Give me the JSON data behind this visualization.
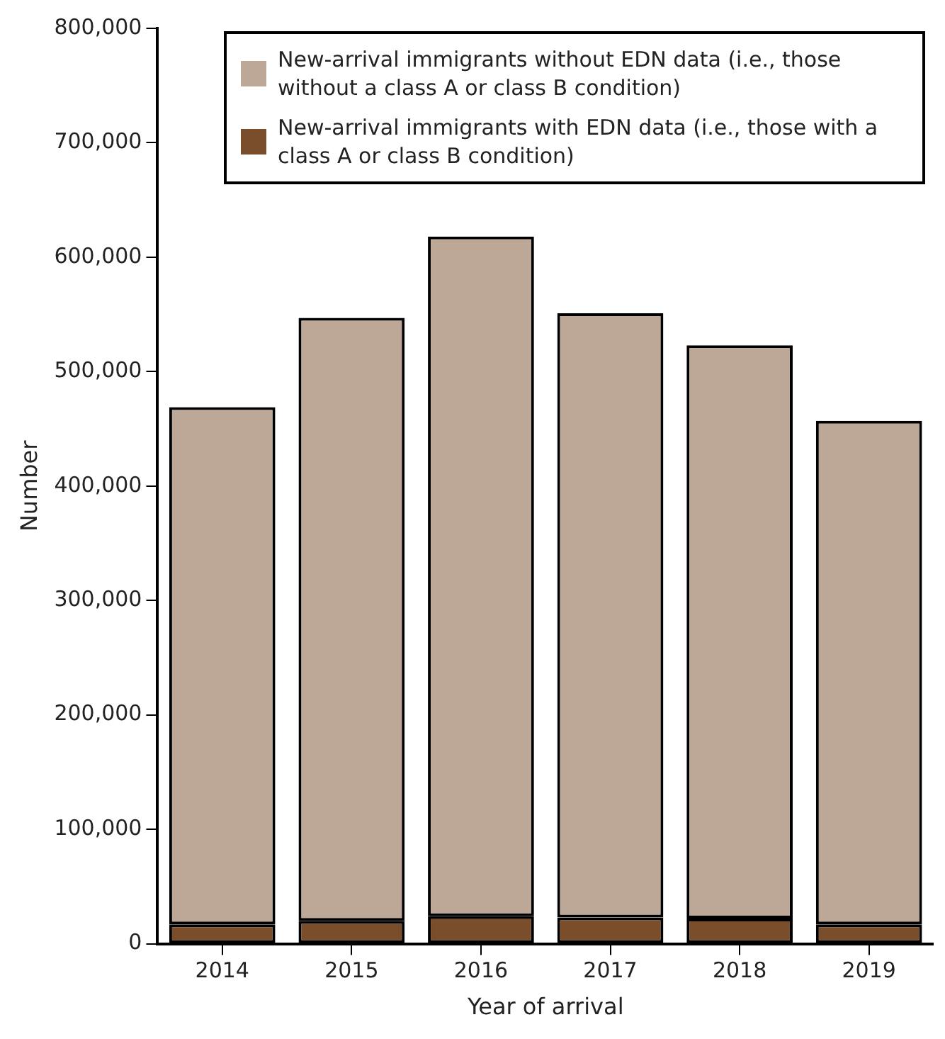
{
  "chart_data": {
    "type": "bar",
    "xlabel": "Year of arrival",
    "ylabel": "Number",
    "categories": [
      "2014",
      "2015",
      "2016",
      "2017",
      "2018",
      "2019"
    ],
    "stacked": true,
    "legend": "top",
    "grid": false,
    "series": [
      {
        "name": "New-arrival immigrants with EDN data (i.e., those with a class A or class B condition)",
        "color": "#7a4e2b",
        "values": [
          17000,
          20000,
          24000,
          23000,
          22000,
          17000
        ]
      },
      {
        "name": "New-arrival immigrants without EDN data (i.e., those without a class A or class B condition)",
        "color": "#bda898",
        "values": [
          452000,
          527000,
          594000,
          528000,
          501000,
          440000
        ]
      }
    ],
    "ylim": [
      0,
      800000
    ],
    "yticks": [
      {
        "value": 0,
        "label": "0"
      },
      {
        "value": 100000,
        "label": "100,000"
      },
      {
        "value": 200000,
        "label": "200,000"
      },
      {
        "value": 300000,
        "label": "300,000"
      },
      {
        "value": 400000,
        "label": "400,000"
      },
      {
        "value": 500000,
        "label": "500,000"
      },
      {
        "value": 600000,
        "label": "600,000"
      },
      {
        "value": 700000,
        "label": "700,000"
      },
      {
        "value": 800000,
        "label": "800,000"
      }
    ]
  }
}
